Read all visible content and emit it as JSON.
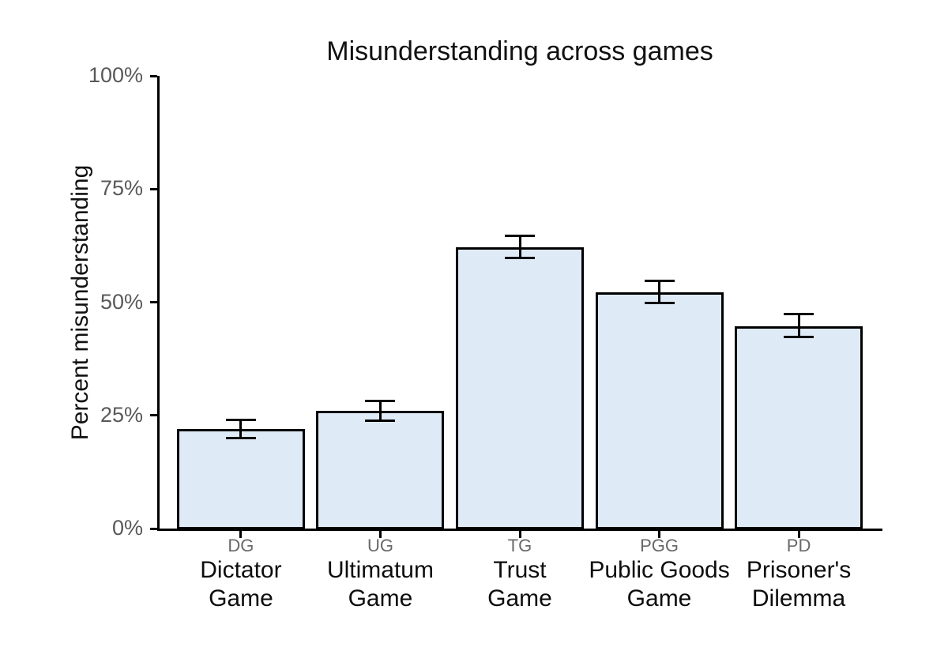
{
  "chart_data": {
    "type": "bar",
    "title": "Misunderstanding across games",
    "ylabel": "Percent misunderstanding",
    "xlabel": "",
    "ylim": [
      0,
      100
    ],
    "grid": false,
    "legend": null,
    "ytick_values": [
      0,
      25,
      50,
      75,
      100
    ],
    "ytick_labels": [
      "0%",
      "25%",
      "50%",
      "75%",
      "100%"
    ],
    "categories": [
      {
        "abbrev": "DG",
        "name": "Dictator\nGame",
        "value": 22.0,
        "err_low": 20.0,
        "err_high": 24.0
      },
      {
        "abbrev": "UG",
        "name": "Ultimatum\nGame",
        "value": 26.0,
        "err_low": 23.8,
        "err_high": 28.2
      },
      {
        "abbrev": "TG",
        "name": "Trust\nGame",
        "value": 62.2,
        "err_low": 59.7,
        "err_high": 64.7
      },
      {
        "abbrev": "PGG",
        "name": "Public Goods\nGame",
        "value": 52.2,
        "err_low": 49.9,
        "err_high": 54.7
      },
      {
        "abbrev": "PD",
        "name": "Prisoner's\nDilemma",
        "value": 44.7,
        "err_low": 42.3,
        "err_high": 47.3
      }
    ],
    "colors": {
      "bar_fill": "#dfeaf7",
      "bar_stroke": "#000000",
      "error_bar": "#000000",
      "axis": "#000000",
      "ytick_label": "#595959",
      "abbrev_label": "#696969",
      "title": "#111111"
    }
  }
}
